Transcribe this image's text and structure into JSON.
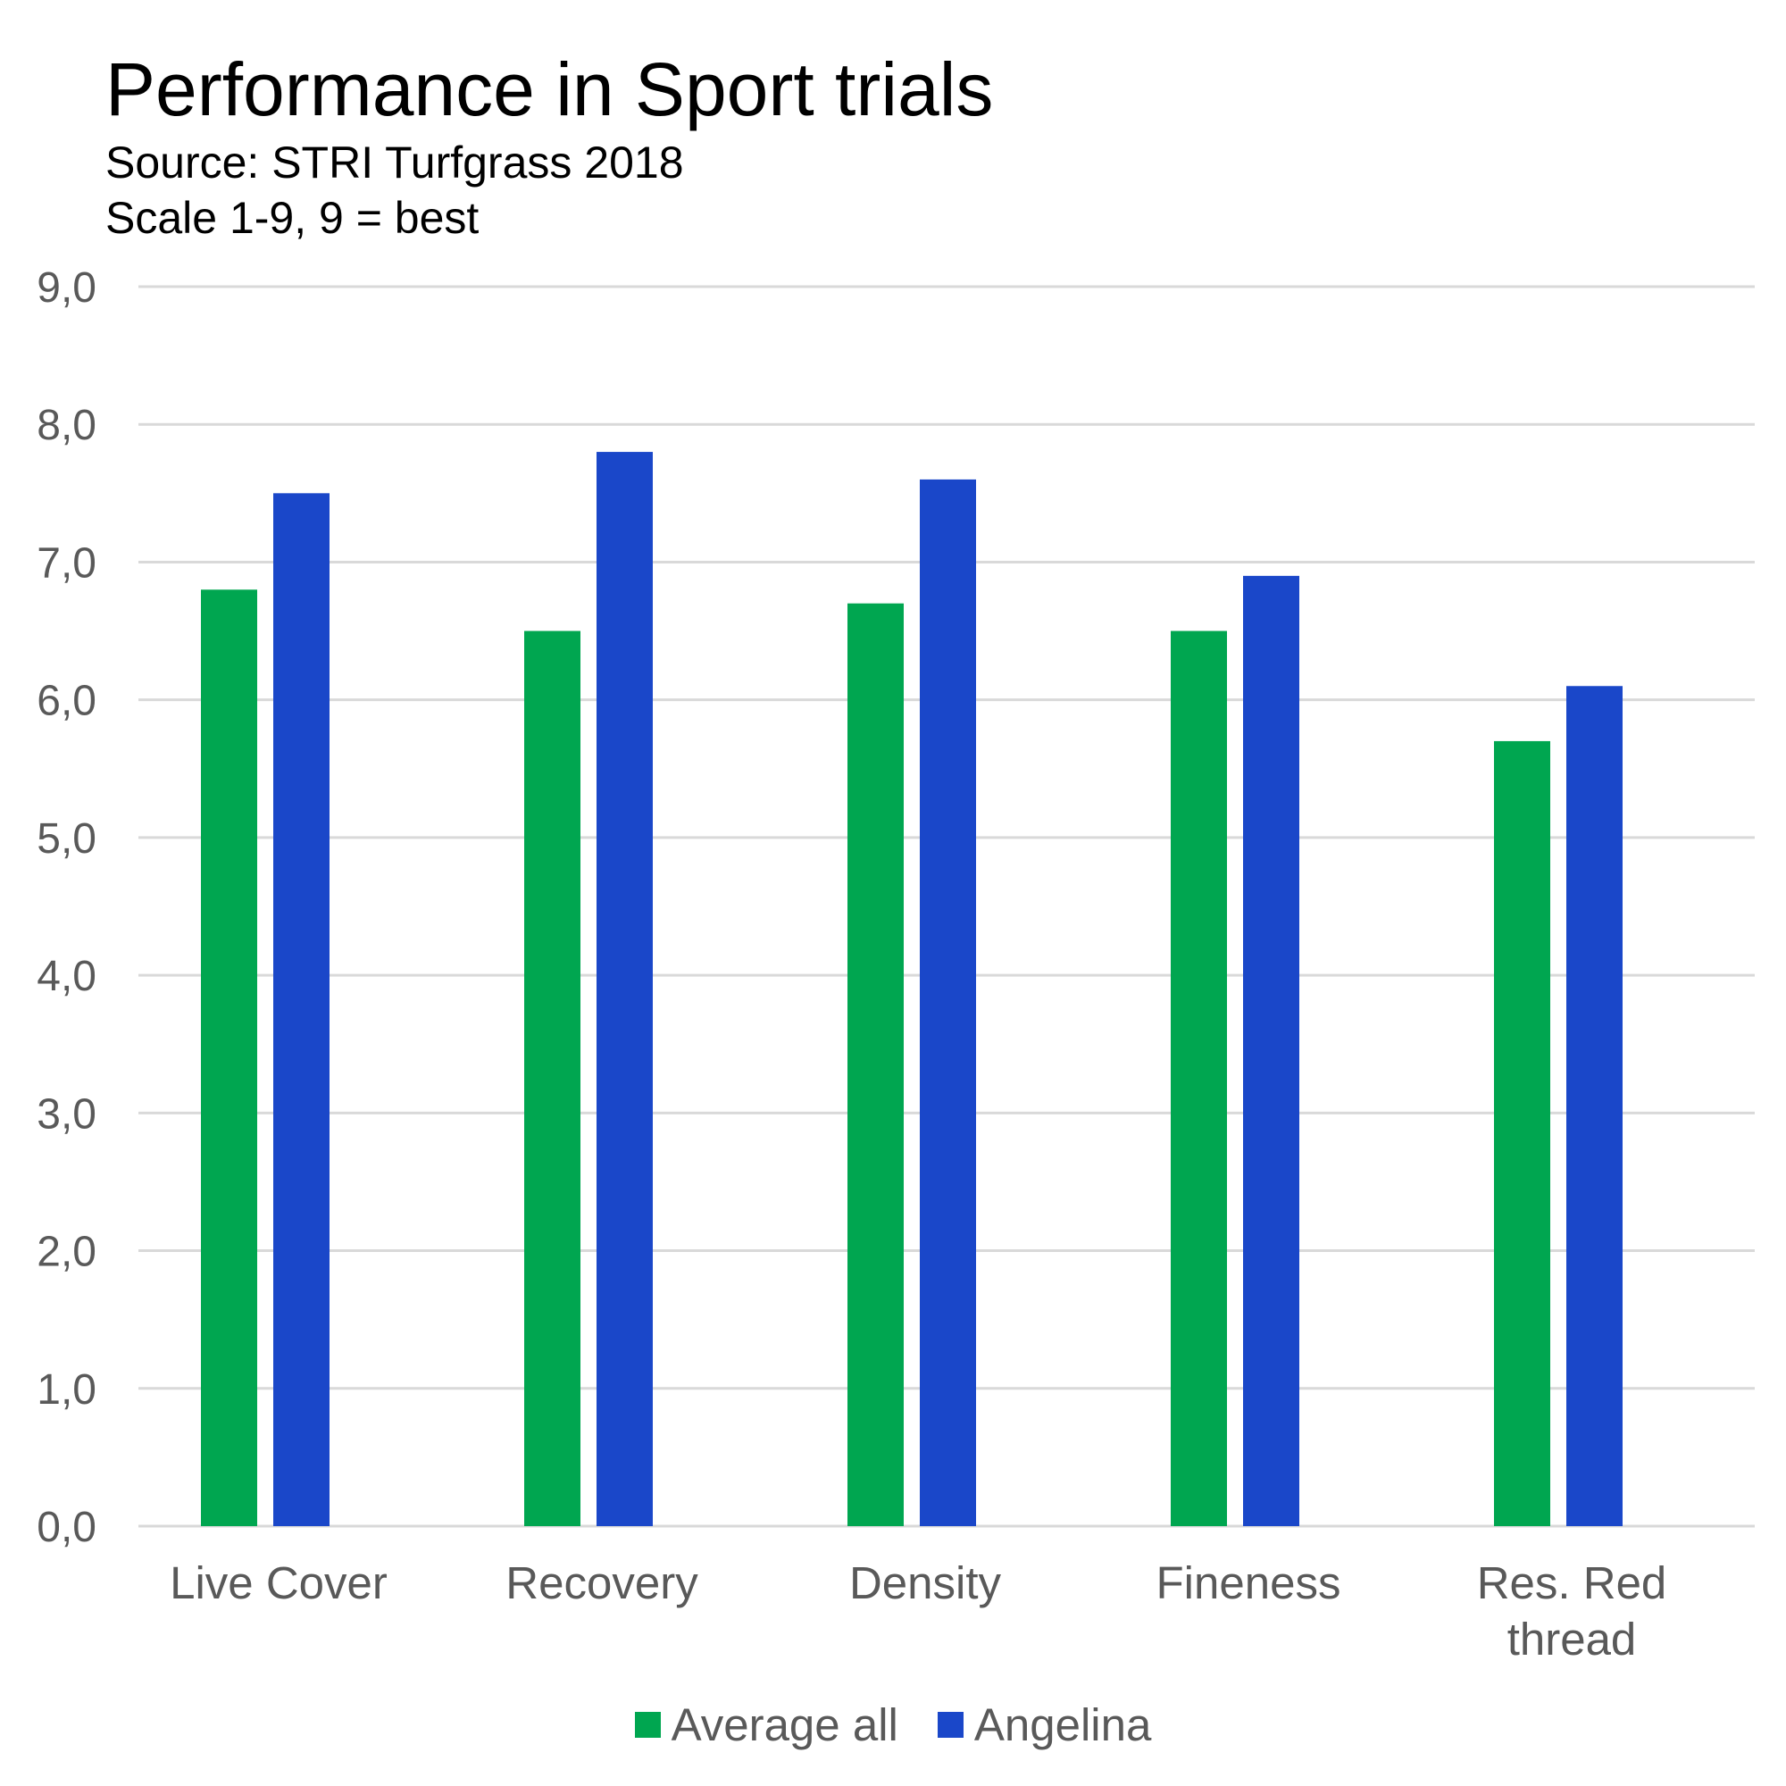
{
  "chart_data": {
    "type": "bar",
    "title": "Performance in Sport trials",
    "subtitle_lines": [
      "Source: STRI Turfgrass 2018",
      "Scale 1-9, 9 = best"
    ],
    "categories": [
      [
        "Live Cover"
      ],
      [
        "Recovery"
      ],
      [
        "Density"
      ],
      [
        "Fineness"
      ],
      [
        "Res. Red",
        "thread"
      ]
    ],
    "series": [
      {
        "name": "Average all",
        "color": "#00a650",
        "values": [
          6.8,
          6.5,
          6.7,
          6.5,
          5.7
        ]
      },
      {
        "name": "Angelina",
        "color": "#1a47c9",
        "values": [
          7.5,
          7.8,
          7.6,
          6.9,
          6.1
        ]
      }
    ],
    "y_ticks": [
      "0,0",
      "1,0",
      "2,0",
      "3,0",
      "4,0",
      "5,0",
      "6,0",
      "7,0",
      "8,0",
      "9,0"
    ],
    "ylim": [
      0,
      9
    ],
    "grid": true,
    "legend_position": "bottom-center",
    "gridline_color": "#d9d9d9",
    "label_color": "#595959"
  }
}
